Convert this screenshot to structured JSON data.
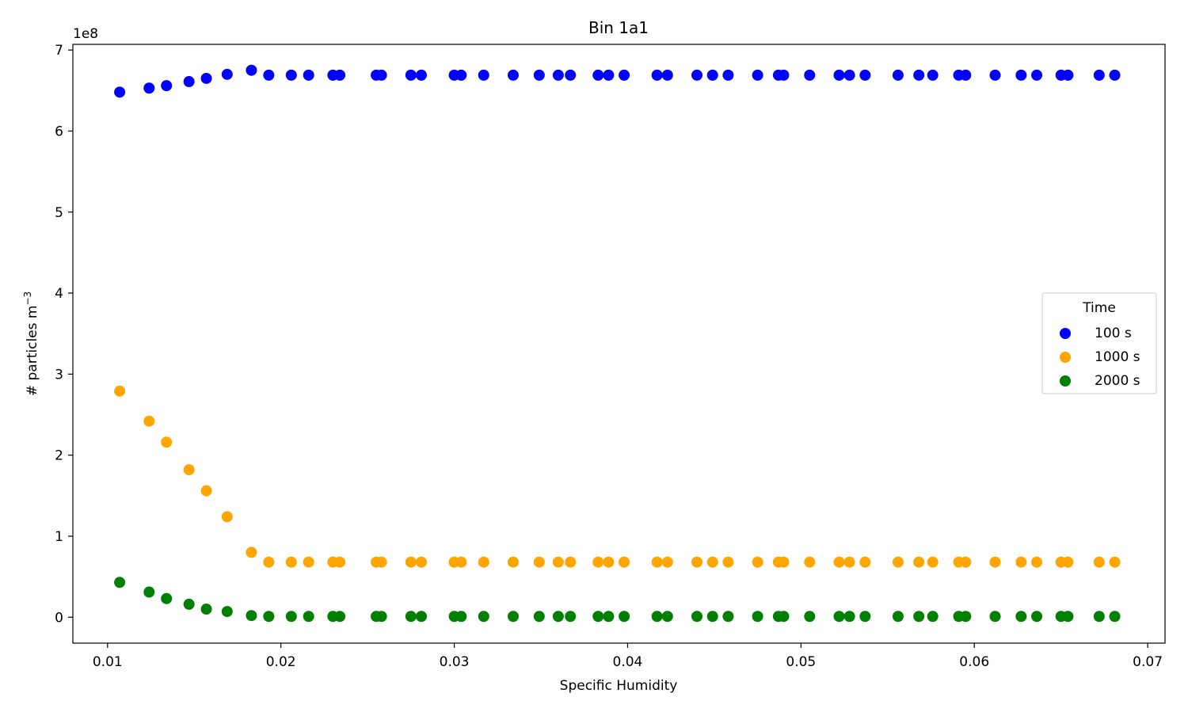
{
  "chart_data": {
    "type": "scatter",
    "title": "Bin 1a1",
    "xlabel": "Specific Humidity",
    "ylabel": "# particles m",
    "ylabel_superscript": "−3",
    "y_scale_factor_label": "1e8",
    "y_scale_factor": 100000000,
    "xlim": [
      0.008,
      0.071
    ],
    "ylim": [
      -0.32,
      7.07
    ],
    "x_ticks": [
      0.01,
      0.02,
      0.03,
      0.04,
      0.05,
      0.06,
      0.07
    ],
    "x_tick_labels": [
      "0.01",
      "0.02",
      "0.03",
      "0.04",
      "0.05",
      "0.06",
      "0.07"
    ],
    "y_ticks": [
      0,
      1,
      2,
      3,
      4,
      5,
      6,
      7
    ],
    "y_tick_labels": [
      "0",
      "1",
      "2",
      "3",
      "4",
      "5",
      "6",
      "7"
    ],
    "grid": false,
    "legend": {
      "title": "Time",
      "placement": "center-right"
    },
    "x": [
      0.0107,
      0.0124,
      0.0134,
      0.0147,
      0.0157,
      0.0169,
      0.0183,
      0.0193,
      0.0206,
      0.0216,
      0.023,
      0.0234,
      0.0255,
      0.0258,
      0.0275,
      0.0281,
      0.03,
      0.0304,
      0.0317,
      0.0334,
      0.0349,
      0.036,
      0.0367,
      0.0383,
      0.0389,
      0.0398,
      0.0417,
      0.0423,
      0.044,
      0.0449,
      0.0458,
      0.0475,
      0.0487,
      0.049,
      0.0505,
      0.0522,
      0.0528,
      0.0537,
      0.0556,
      0.0568,
      0.0576,
      0.0591,
      0.0595,
      0.0612,
      0.0627,
      0.0636,
      0.065,
      0.0654,
      0.0672,
      0.0681
    ],
    "series": [
      {
        "name": "100 s",
        "color": "#0000ff",
        "values": [
          6.48,
          6.53,
          6.56,
          6.61,
          6.65,
          6.7,
          6.75,
          6.69,
          6.69,
          6.69,
          6.69,
          6.69,
          6.69,
          6.69,
          6.69,
          6.69,
          6.69,
          6.69,
          6.69,
          6.69,
          6.69,
          6.69,
          6.69,
          6.69,
          6.69,
          6.69,
          6.69,
          6.69,
          6.69,
          6.69,
          6.69,
          6.69,
          6.69,
          6.69,
          6.69,
          6.69,
          6.69,
          6.69,
          6.69,
          6.69,
          6.69,
          6.69,
          6.69,
          6.69,
          6.69,
          6.69,
          6.69,
          6.69,
          6.69,
          6.69
        ]
      },
      {
        "name": "1000 s",
        "color": "#ffa500",
        "values": [
          2.79,
          2.42,
          2.16,
          1.82,
          1.56,
          1.24,
          0.8,
          0.68,
          0.68,
          0.68,
          0.68,
          0.68,
          0.68,
          0.68,
          0.68,
          0.68,
          0.68,
          0.68,
          0.68,
          0.68,
          0.68,
          0.68,
          0.68,
          0.68,
          0.68,
          0.68,
          0.68,
          0.68,
          0.68,
          0.68,
          0.68,
          0.68,
          0.68,
          0.68,
          0.68,
          0.68,
          0.68,
          0.68,
          0.68,
          0.68,
          0.68,
          0.68,
          0.68,
          0.68,
          0.68,
          0.68,
          0.68,
          0.68,
          0.68,
          0.68
        ]
      },
      {
        "name": "2000 s",
        "color": "#008000",
        "values": [
          0.43,
          0.31,
          0.23,
          0.16,
          0.1,
          0.07,
          0.02,
          0.01,
          0.01,
          0.01,
          0.01,
          0.01,
          0.01,
          0.01,
          0.01,
          0.01,
          0.01,
          0.01,
          0.01,
          0.01,
          0.01,
          0.01,
          0.01,
          0.01,
          0.01,
          0.01,
          0.01,
          0.01,
          0.01,
          0.01,
          0.01,
          0.01,
          0.01,
          0.01,
          0.01,
          0.01,
          0.01,
          0.01,
          0.01,
          0.01,
          0.01,
          0.01,
          0.01,
          0.01,
          0.01,
          0.01,
          0.01,
          0.01,
          0.01,
          0.01
        ]
      }
    ]
  }
}
